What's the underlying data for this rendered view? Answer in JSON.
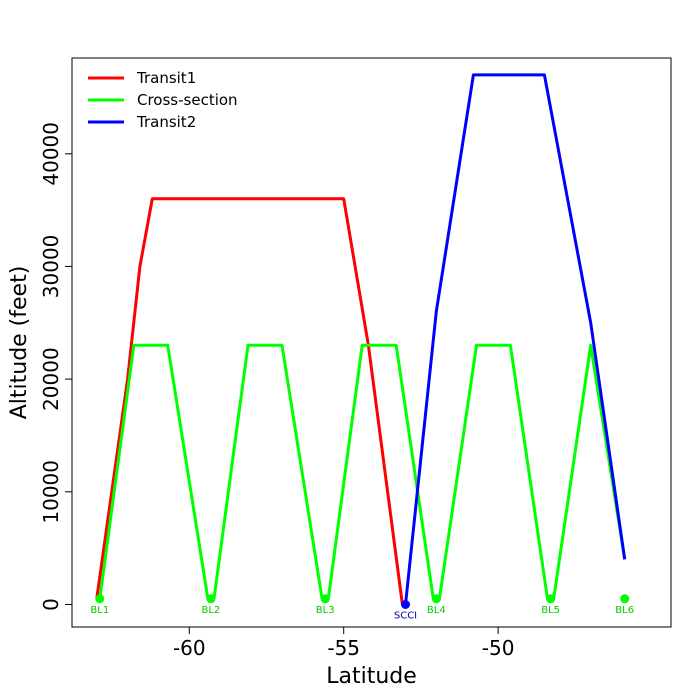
{
  "chart_data": {
    "type": "line",
    "xlabel": "Latitude",
    "ylabel": "Altitude (feet)",
    "xlim": [
      -63.8,
      -44.4
    ],
    "ylim": [
      -2000,
      48500
    ],
    "x_ticks": [
      -60,
      -55,
      -50
    ],
    "x_tick_labels": [
      "-60",
      "-55",
      "-50"
    ],
    "y_ticks": [
      0,
      10000,
      20000,
      30000,
      40000
    ],
    "y_tick_labels": [
      "0",
      "10000",
      "20000",
      "30000",
      "40000"
    ],
    "legend_position": "top-left",
    "series": [
      {
        "name": "Transit1",
        "color": "#ff0000",
        "points": [
          {
            "x": -63.0,
            "y": 500
          },
          {
            "x": -62.0,
            "y": 20000
          },
          {
            "x": -61.6,
            "y": 30000
          },
          {
            "x": -61.2,
            "y": 36000
          },
          {
            "x": -55.0,
            "y": 36000
          },
          {
            "x": -54.2,
            "y": 23000
          },
          {
            "x": -53.1,
            "y": 0
          }
        ]
      },
      {
        "name": "Cross-section",
        "color": "#00ff00",
        "points": [
          {
            "x": -62.9,
            "y": 500
          },
          {
            "x": -61.8,
            "y": 23000
          },
          {
            "x": -60.7,
            "y": 23000
          },
          {
            "x": -59.4,
            "y": 500
          },
          {
            "x": -59.2,
            "y": 500
          },
          {
            "x": -58.1,
            "y": 23000
          },
          {
            "x": -57.0,
            "y": 23000
          },
          {
            "x": -55.7,
            "y": 500
          },
          {
            "x": -55.5,
            "y": 500
          },
          {
            "x": -54.4,
            "y": 23000
          },
          {
            "x": -53.3,
            "y": 23000
          },
          {
            "x": -52.1,
            "y": 500
          },
          {
            "x": -51.9,
            "y": 500
          },
          {
            "x": -50.7,
            "y": 23000
          },
          {
            "x": -49.6,
            "y": 23000
          },
          {
            "x": -48.4,
            "y": 500
          },
          {
            "x": -48.2,
            "y": 500
          },
          {
            "x": -47.0,
            "y": 23000
          },
          {
            "x": -45.9,
            "y": 4000
          }
        ]
      },
      {
        "name": "Transit2",
        "color": "#0000ff",
        "points": [
          {
            "x": -53.0,
            "y": 0
          },
          {
            "x": -52.0,
            "y": 26000
          },
          {
            "x": -50.8,
            "y": 47000
          },
          {
            "x": -48.5,
            "y": 47000
          },
          {
            "x": -47.0,
            "y": 25000
          },
          {
            "x": -45.9,
            "y": 4000
          }
        ]
      }
    ],
    "markers": [
      {
        "label": "BL1",
        "x": -62.9,
        "y": 500,
        "color": "#00ff00"
      },
      {
        "label": "BL2",
        "x": -59.3,
        "y": 500,
        "color": "#00ff00"
      },
      {
        "label": "BL3",
        "x": -55.6,
        "y": 500,
        "color": "#00ff00"
      },
      {
        "label": "SCCI",
        "x": -53.0,
        "y": 0,
        "color": "#0000ff"
      },
      {
        "label": "BL4",
        "x": -52.0,
        "y": 500,
        "color": "#00ff00"
      },
      {
        "label": "BL5",
        "x": -48.3,
        "y": 500,
        "color": "#00ff00"
      },
      {
        "label": "BL6",
        "x": -45.9,
        "y": 500,
        "color": "#00ff00"
      }
    ],
    "marker_label_colors": {
      "BL": "#00cc00",
      "SCCI": "#0000aa"
    }
  }
}
